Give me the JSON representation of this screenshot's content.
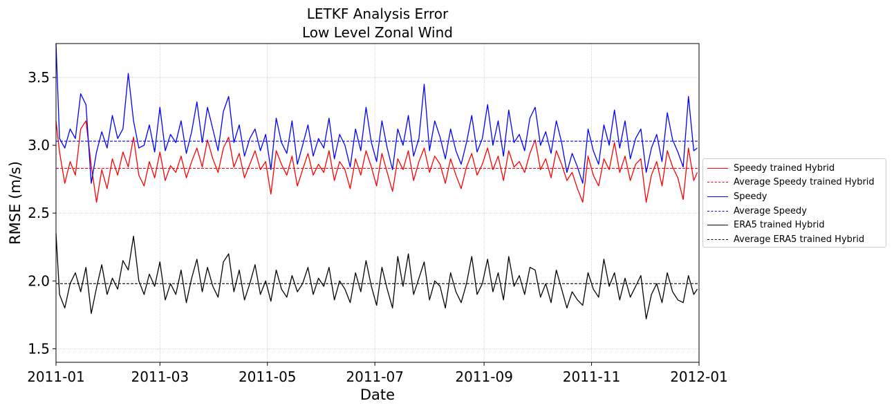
{
  "chart_data": {
    "type": "line",
    "title": "LETKF Analysis Error",
    "subtitle": "Low Level Zonal Wind",
    "xlabel": "Date",
    "ylabel": "RMSE (m/s)",
    "xlim": [
      "2011-01-01",
      "2012-01-01"
    ],
    "ylim": [
      1.4,
      3.75
    ],
    "x_ticks": [
      "2011-01",
      "2011-03",
      "2011-05",
      "2011-07",
      "2011-09",
      "2011-11",
      "2012-01"
    ],
    "y_ticks": [
      "1.5",
      "2.0",
      "2.5",
      "3.0",
      "3.5"
    ],
    "grid": true,
    "legend_position": "outside-right",
    "series": [
      {
        "name": "Speedy trained Hybrid",
        "color": "#ff0000",
        "style": "solid",
        "x": [
          "2011-01-01",
          "2011-01-03",
          "2011-01-06",
          "2011-01-09",
          "2011-01-12",
          "2011-01-15",
          "2011-01-18",
          "2011-01-21",
          "2011-01-24",
          "2011-01-27",
          "2011-01-30",
          "2011-02-02",
          "2011-02-05",
          "2011-02-08",
          "2011-02-11",
          "2011-02-14",
          "2011-02-17",
          "2011-02-20",
          "2011-02-23",
          "2011-02-26",
          "2011-03-01",
          "2011-03-04",
          "2011-03-07",
          "2011-03-10",
          "2011-03-13",
          "2011-03-16",
          "2011-03-19",
          "2011-03-22",
          "2011-03-25",
          "2011-03-28",
          "2011-03-31",
          "2011-04-03",
          "2011-04-06",
          "2011-04-09",
          "2011-04-12",
          "2011-04-15",
          "2011-04-18",
          "2011-04-21",
          "2011-04-24",
          "2011-04-27",
          "2011-04-30",
          "2011-05-03",
          "2011-05-06",
          "2011-05-09",
          "2011-05-12",
          "2011-05-15",
          "2011-05-18",
          "2011-05-21",
          "2011-05-24",
          "2011-05-27",
          "2011-05-30",
          "2011-06-02",
          "2011-06-05",
          "2011-06-08",
          "2011-06-11",
          "2011-06-14",
          "2011-06-17",
          "2011-06-20",
          "2011-06-23",
          "2011-06-26",
          "2011-06-29",
          "2011-07-02",
          "2011-07-05",
          "2011-07-08",
          "2011-07-11",
          "2011-07-14",
          "2011-07-17",
          "2011-07-20",
          "2011-07-23",
          "2011-07-26",
          "2011-07-29",
          "2011-08-01",
          "2011-08-04",
          "2011-08-07",
          "2011-08-10",
          "2011-08-13",
          "2011-08-16",
          "2011-08-19",
          "2011-08-22",
          "2011-08-25",
          "2011-08-28",
          "2011-08-31",
          "2011-09-03",
          "2011-09-06",
          "2011-09-09",
          "2011-09-12",
          "2011-09-15",
          "2011-09-18",
          "2011-09-21",
          "2011-09-24",
          "2011-09-27",
          "2011-09-30",
          "2011-10-03",
          "2011-10-06",
          "2011-10-09",
          "2011-10-12",
          "2011-10-15",
          "2011-10-18",
          "2011-10-21",
          "2011-10-24",
          "2011-10-27",
          "2011-10-30",
          "2011-11-02",
          "2011-11-05",
          "2011-11-08",
          "2011-11-11",
          "2011-11-14",
          "2011-11-17",
          "2011-11-20",
          "2011-11-23",
          "2011-11-26",
          "2011-11-29",
          "2011-12-02",
          "2011-12-05",
          "2011-12-08",
          "2011-12-11",
          "2011-12-14",
          "2011-12-17",
          "2011-12-20",
          "2011-12-23",
          "2011-12-26",
          "2011-12-29",
          "2011-12-31"
        ],
        "values": [
          3.18,
          2.95,
          2.72,
          2.88,
          2.78,
          3.12,
          3.18,
          2.85,
          2.58,
          2.82,
          2.68,
          2.9,
          2.78,
          2.95,
          2.84,
          3.06,
          2.78,
          2.7,
          2.88,
          2.76,
          2.95,
          2.74,
          2.85,
          2.8,
          2.92,
          2.76,
          2.88,
          2.98,
          2.84,
          3.04,
          2.9,
          2.8,
          2.98,
          3.06,
          2.84,
          2.94,
          2.76,
          2.86,
          2.96,
          2.82,
          2.88,
          2.64,
          2.96,
          2.86,
          2.78,
          2.92,
          2.7,
          2.82,
          2.94,
          2.78,
          2.86,
          2.8,
          2.96,
          2.74,
          2.88,
          2.82,
          2.68,
          2.9,
          2.78,
          2.96,
          2.84,
          2.7,
          2.94,
          2.8,
          2.66,
          2.9,
          2.82,
          2.96,
          2.74,
          2.88,
          2.98,
          2.8,
          2.92,
          2.86,
          2.72,
          2.9,
          2.78,
          2.68,
          2.84,
          2.94,
          2.78,
          2.86,
          2.98,
          2.82,
          2.92,
          2.74,
          2.96,
          2.84,
          2.88,
          2.8,
          2.94,
          3.04,
          2.82,
          2.9,
          2.76,
          2.96,
          2.86,
          2.74,
          2.8,
          2.68,
          2.58,
          2.92,
          2.78,
          2.7,
          2.9,
          2.82,
          3.02,
          2.8,
          2.92,
          2.74,
          2.86,
          2.9,
          2.58,
          2.78,
          2.88,
          2.7,
          2.96,
          2.84,
          2.76,
          2.6,
          2.98,
          2.74,
          2.8
        ]
      },
      {
        "name": "Average Speedy trained Hybrid",
        "color": "#ff0000",
        "style": "dashed",
        "x": [
          "2011-01-01",
          "2012-01-01"
        ],
        "values": [
          2.83,
          2.83
        ]
      },
      {
        "name": "Speedy",
        "color": "#0000ff",
        "style": "solid",
        "x": [
          "2011-01-01",
          "2011-01-03",
          "2011-01-06",
          "2011-01-09",
          "2011-01-12",
          "2011-01-15",
          "2011-01-18",
          "2011-01-21",
          "2011-01-24",
          "2011-01-27",
          "2011-01-30",
          "2011-02-02",
          "2011-02-05",
          "2011-02-08",
          "2011-02-11",
          "2011-02-14",
          "2011-02-17",
          "2011-02-20",
          "2011-02-23",
          "2011-02-26",
          "2011-03-01",
          "2011-03-04",
          "2011-03-07",
          "2011-03-10",
          "2011-03-13",
          "2011-03-16",
          "2011-03-19",
          "2011-03-22",
          "2011-03-25",
          "2011-03-28",
          "2011-03-31",
          "2011-04-03",
          "2011-04-06",
          "2011-04-09",
          "2011-04-12",
          "2011-04-15",
          "2011-04-18",
          "2011-04-21",
          "2011-04-24",
          "2011-04-27",
          "2011-04-30",
          "2011-05-03",
          "2011-05-06",
          "2011-05-09",
          "2011-05-12",
          "2011-05-15",
          "2011-05-18",
          "2011-05-21",
          "2011-05-24",
          "2011-05-27",
          "2011-05-30",
          "2011-06-02",
          "2011-06-05",
          "2011-06-08",
          "2011-06-11",
          "2011-06-14",
          "2011-06-17",
          "2011-06-20",
          "2011-06-23",
          "2011-06-26",
          "2011-06-29",
          "2011-07-02",
          "2011-07-05",
          "2011-07-08",
          "2011-07-11",
          "2011-07-14",
          "2011-07-17",
          "2011-07-20",
          "2011-07-23",
          "2011-07-26",
          "2011-07-29",
          "2011-08-01",
          "2011-08-04",
          "2011-08-07",
          "2011-08-10",
          "2011-08-13",
          "2011-08-16",
          "2011-08-19",
          "2011-08-22",
          "2011-08-25",
          "2011-08-28",
          "2011-08-31",
          "2011-09-03",
          "2011-09-06",
          "2011-09-09",
          "2011-09-12",
          "2011-09-15",
          "2011-09-18",
          "2011-09-21",
          "2011-09-24",
          "2011-09-27",
          "2011-09-30",
          "2011-10-03",
          "2011-10-06",
          "2011-10-09",
          "2011-10-12",
          "2011-10-15",
          "2011-10-18",
          "2011-10-21",
          "2011-10-24",
          "2011-10-27",
          "2011-10-30",
          "2011-11-02",
          "2011-11-05",
          "2011-11-08",
          "2011-11-11",
          "2011-11-14",
          "2011-11-17",
          "2011-11-20",
          "2011-11-23",
          "2011-11-26",
          "2011-11-29",
          "2011-12-02",
          "2011-12-05",
          "2011-12-08",
          "2011-12-11",
          "2011-12-14",
          "2011-12-17",
          "2011-12-20",
          "2011-12-23",
          "2011-12-26",
          "2011-12-29",
          "2011-12-31"
        ],
        "values": [
          3.75,
          3.05,
          2.98,
          3.12,
          3.05,
          3.38,
          3.3,
          2.72,
          2.95,
          3.1,
          2.98,
          3.22,
          3.05,
          3.12,
          3.53,
          3.18,
          2.98,
          3.0,
          3.15,
          2.95,
          3.28,
          2.96,
          3.08,
          3.02,
          3.18,
          2.94,
          3.1,
          3.32,
          3.02,
          3.28,
          3.12,
          2.96,
          3.25,
          3.36,
          3.02,
          3.15,
          2.92,
          3.05,
          3.12,
          2.96,
          3.08,
          2.82,
          3.2,
          3.02,
          2.94,
          3.18,
          2.86,
          3.0,
          3.15,
          2.92,
          3.05,
          2.98,
          3.2,
          2.9,
          3.08,
          3.0,
          2.84,
          3.12,
          2.96,
          3.28,
          3.02,
          2.88,
          3.18,
          2.98,
          2.82,
          3.12,
          3.0,
          3.22,
          2.92,
          3.05,
          3.45,
          2.96,
          3.18,
          3.06,
          2.9,
          3.12,
          2.96,
          2.86,
          3.02,
          3.22,
          2.95,
          3.05,
          3.3,
          3.0,
          3.18,
          2.92,
          3.26,
          3.02,
          3.08,
          2.96,
          3.2,
          3.28,
          3.0,
          3.1,
          2.94,
          3.18,
          3.02,
          2.8,
          2.94,
          2.84,
          2.72,
          3.12,
          2.96,
          2.86,
          3.15,
          3.0,
          3.26,
          2.98,
          3.18,
          2.9,
          3.05,
          3.12,
          2.8,
          2.98,
          3.08,
          2.88,
          3.24,
          3.04,
          2.95,
          2.84,
          3.36,
          2.96,
          2.98
        ]
      },
      {
        "name": "Average Speedy",
        "color": "#0000ff",
        "style": "dashed",
        "x": [
          "2011-01-01",
          "2012-01-01"
        ],
        "values": [
          3.03,
          3.03
        ]
      },
      {
        "name": "ERA5 trained Hybrid",
        "color": "#000000",
        "style": "solid",
        "x": [
          "2011-01-01",
          "2011-01-03",
          "2011-01-06",
          "2011-01-09",
          "2011-01-12",
          "2011-01-15",
          "2011-01-18",
          "2011-01-21",
          "2011-01-24",
          "2011-01-27",
          "2011-01-30",
          "2011-02-02",
          "2011-02-05",
          "2011-02-08",
          "2011-02-11",
          "2011-02-14",
          "2011-02-17",
          "2011-02-20",
          "2011-02-23",
          "2011-02-26",
          "2011-03-01",
          "2011-03-04",
          "2011-03-07",
          "2011-03-10",
          "2011-03-13",
          "2011-03-16",
          "2011-03-19",
          "2011-03-22",
          "2011-03-25",
          "2011-03-28",
          "2011-03-31",
          "2011-04-03",
          "2011-04-06",
          "2011-04-09",
          "2011-04-12",
          "2011-04-15",
          "2011-04-18",
          "2011-04-21",
          "2011-04-24",
          "2011-04-27",
          "2011-04-30",
          "2011-05-03",
          "2011-05-06",
          "2011-05-09",
          "2011-05-12",
          "2011-05-15",
          "2011-05-18",
          "2011-05-21",
          "2011-05-24",
          "2011-05-27",
          "2011-05-30",
          "2011-06-02",
          "2011-06-05",
          "2011-06-08",
          "2011-06-11",
          "2011-06-14",
          "2011-06-17",
          "2011-06-20",
          "2011-06-23",
          "2011-06-26",
          "2011-06-29",
          "2011-07-02",
          "2011-07-05",
          "2011-07-08",
          "2011-07-11",
          "2011-07-14",
          "2011-07-17",
          "2011-07-20",
          "2011-07-23",
          "2011-07-26",
          "2011-07-29",
          "2011-08-01",
          "2011-08-04",
          "2011-08-07",
          "2011-08-10",
          "2011-08-13",
          "2011-08-16",
          "2011-08-19",
          "2011-08-22",
          "2011-08-25",
          "2011-08-28",
          "2011-08-31",
          "2011-09-03",
          "2011-09-06",
          "2011-09-09",
          "2011-09-12",
          "2011-09-15",
          "2011-09-18",
          "2011-09-21",
          "2011-09-24",
          "2011-09-27",
          "2011-09-30",
          "2011-10-03",
          "2011-10-06",
          "2011-10-09",
          "2011-10-12",
          "2011-10-15",
          "2011-10-18",
          "2011-10-21",
          "2011-10-24",
          "2011-10-27",
          "2011-10-30",
          "2011-11-02",
          "2011-11-05",
          "2011-11-08",
          "2011-11-11",
          "2011-11-14",
          "2011-11-17",
          "2011-11-20",
          "2011-11-23",
          "2011-11-26",
          "2011-11-29",
          "2011-12-02",
          "2011-12-05",
          "2011-12-08",
          "2011-12-11",
          "2011-12-14",
          "2011-12-17",
          "2011-12-20",
          "2011-12-23",
          "2011-12-26",
          "2011-12-29",
          "2011-12-31"
        ],
        "values": [
          2.35,
          1.9,
          1.8,
          1.98,
          2.06,
          1.92,
          2.1,
          1.76,
          1.95,
          2.12,
          1.9,
          2.02,
          1.94,
          2.15,
          2.08,
          2.33,
          2.0,
          1.9,
          2.05,
          1.96,
          2.14,
          1.86,
          1.98,
          1.9,
          2.08,
          1.84,
          2.02,
          2.16,
          1.92,
          2.1,
          1.96,
          1.88,
          2.14,
          2.2,
          1.92,
          2.08,
          1.86,
          1.98,
          2.12,
          1.9,
          2.0,
          1.85,
          2.08,
          1.94,
          1.88,
          2.04,
          1.92,
          1.98,
          2.1,
          1.9,
          2.02,
          1.96,
          2.1,
          1.86,
          2.0,
          1.94,
          1.84,
          2.06,
          1.92,
          2.15,
          1.96,
          1.82,
          2.1,
          1.94,
          1.8,
          2.18,
          1.96,
          2.2,
          1.9,
          2.02,
          2.14,
          1.86,
          2.0,
          1.96,
          1.8,
          2.06,
          1.92,
          1.84,
          1.98,
          2.18,
          1.9,
          1.98,
          2.16,
          1.92,
          2.06,
          1.86,
          2.18,
          1.96,
          2.04,
          1.9,
          2.1,
          2.08,
          1.88,
          1.98,
          1.84,
          2.08,
          1.94,
          1.8,
          1.92,
          1.86,
          1.82,
          2.06,
          1.94,
          1.88,
          2.16,
          1.96,
          2.06,
          1.86,
          2.02,
          1.88,
          1.96,
          2.04,
          1.72,
          1.9,
          1.98,
          1.84,
          2.06,
          1.92,
          1.86,
          1.84,
          2.04,
          1.9,
          1.94
        ]
      },
      {
        "name": "Average ERA5 trained Hybrid",
        "color": "#000000",
        "style": "dashed",
        "x": [
          "2011-01-01",
          "2012-01-01"
        ],
        "values": [
          1.98,
          1.98
        ]
      }
    ]
  }
}
